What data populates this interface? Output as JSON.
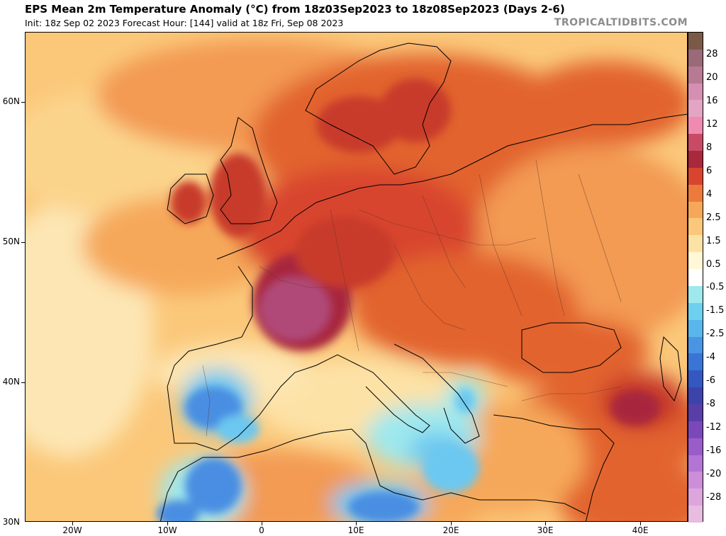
{
  "header": {
    "title": "EPS Mean 2m Temperature Anomaly (°C) from 18z03Sep2023 to 18z08Sep2023 (Days 2-6)",
    "subtitle": "Init: 18z Sep 02 2023   Forecast Hour: [144]   valid at 18z Fri, Sep 08 2023",
    "brand": "TROPICALTIDBITS.COM"
  },
  "axes": {
    "lat_labels": [
      "60N",
      "50N",
      "40N",
      "30N"
    ],
    "lon_labels": [
      "20W",
      "10W",
      "0",
      "10E",
      "20E",
      "30E",
      "40E"
    ]
  },
  "colorbar": {
    "labels": [
      "28",
      "20",
      "16",
      "12",
      "8",
      "6",
      "4",
      "2.5",
      "1.5",
      "0.5",
      "-0.5",
      "-1.5",
      "-2.5",
      "-4",
      "-6",
      "-8",
      "-12",
      "-16",
      "-20",
      "-28"
    ],
    "colors": [
      "#7a5a46",
      "#9a6a78",
      "#b87a92",
      "#d48fb2",
      "#e4a4c4",
      "#f08ab0",
      "#c84a64",
      "#a8283c",
      "#d8442e",
      "#ec7a3c",
      "#f6a85a",
      "#fbc87a",
      "#fde2a6",
      "#fff7d6",
      "#ffffff",
      "#9ee8ee",
      "#6cd0ee",
      "#58b6ec",
      "#4a94e4",
      "#3a74d4",
      "#3458c0",
      "#3c44ac",
      "#5a3ea8",
      "#7a48b8",
      "#9a5cc8",
      "#b474d4",
      "#cc8ed8",
      "#dca6dc",
      "#e8bce0"
    ]
  },
  "map": {
    "colors": {
      "ocean_neutral": "#fde6b4",
      "warm_light": "#fbc87a",
      "warm_mid": "#f39a52",
      "warm_strong": "#e2642e",
      "hot": "#c83a2c",
      "very_hot": "#a8283c",
      "extreme": "#b04a78",
      "cool_light": "#9ee8ee",
      "cool_mid": "#6cc8f0",
      "cool_strong": "#4a8ee2",
      "coastline": "#000000"
    }
  }
}
